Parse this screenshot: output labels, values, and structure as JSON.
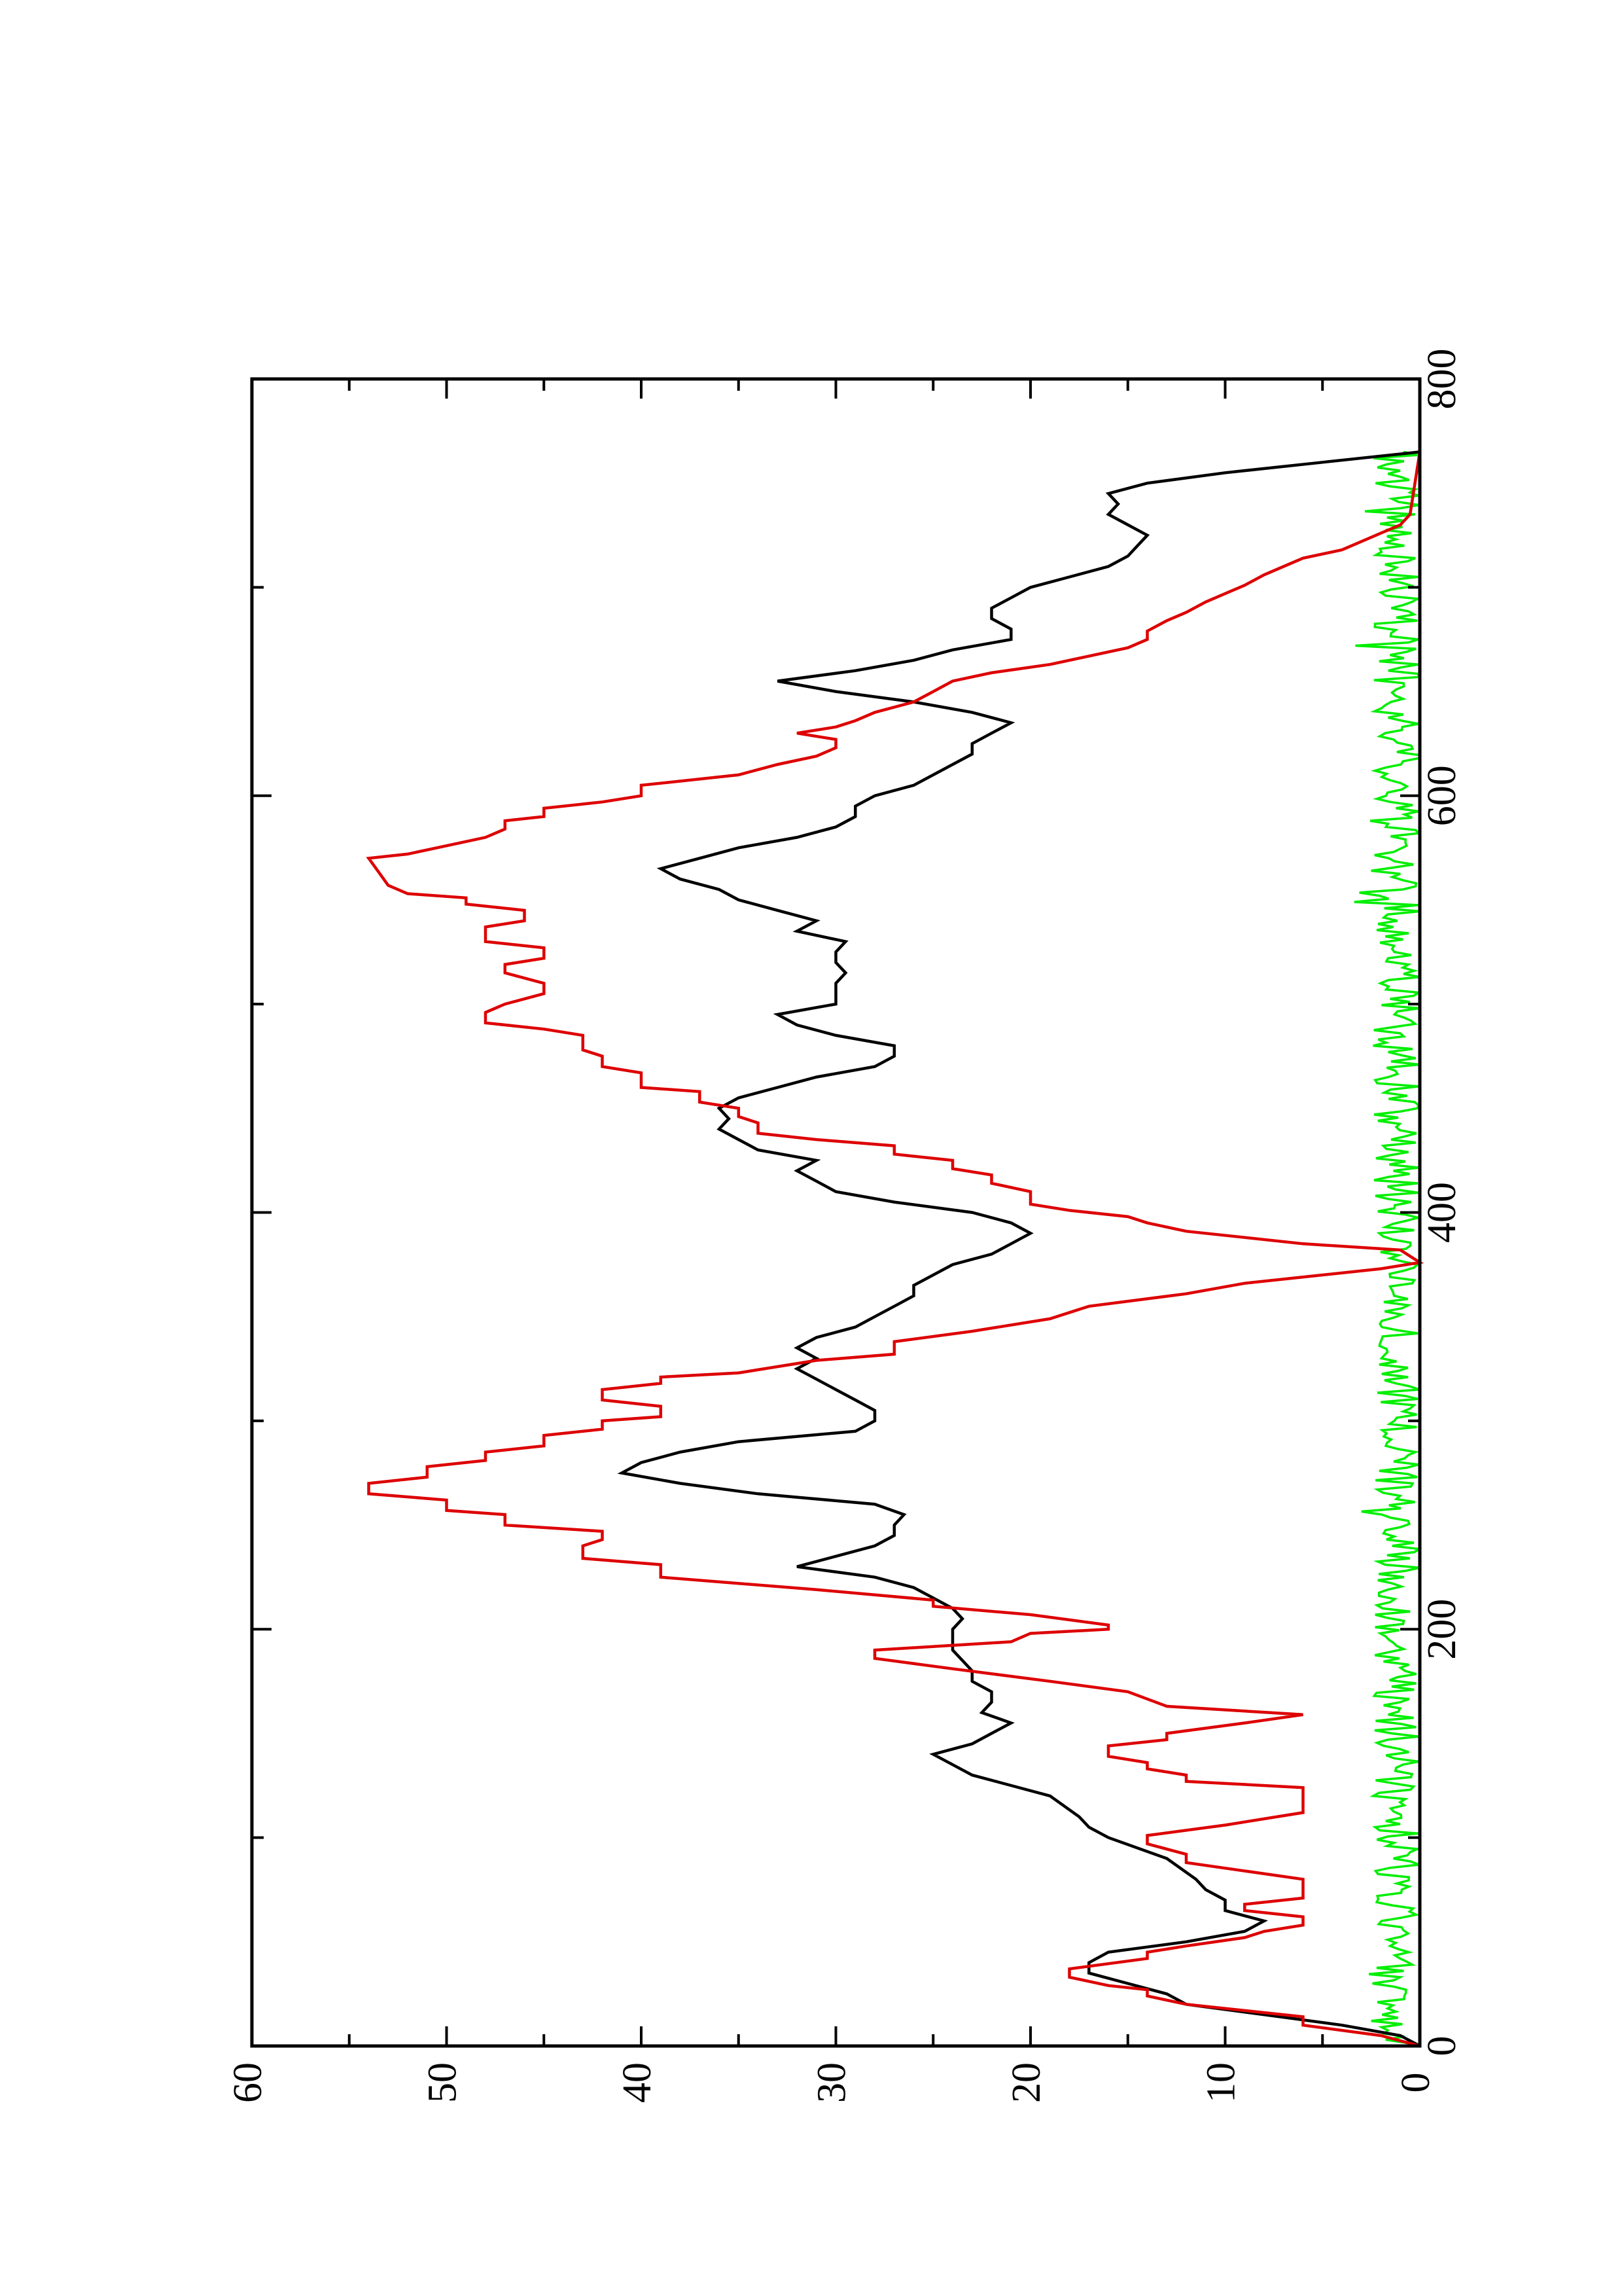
{
  "chart_data": {
    "type": "line",
    "orientation": "rotated-90-ccw",
    "xlim": [
      0,
      800
    ],
    "ylim": [
      0,
      60
    ],
    "x_ticks": [
      0,
      200,
      400,
      600,
      800
    ],
    "x_tick_labels": [
      "0",
      "200",
      "400",
      "600",
      "800"
    ],
    "y_ticks": [
      0,
      10,
      20,
      30,
      40,
      50,
      60
    ],
    "y_tick_labels": [
      "0",
      "10",
      "20",
      "30",
      "40",
      "50",
      "60"
    ],
    "grid": false,
    "legend": "none",
    "colors": {
      "black_series": "#000000",
      "red_series": "#dd0000",
      "green_series": "#00ee00"
    },
    "series": [
      {
        "color": "#000000",
        "points": [
          [
            0,
            0
          ],
          [
            5,
            1
          ],
          [
            10,
            4
          ],
          [
            15,
            8
          ],
          [
            20,
            12
          ],
          [
            25,
            13
          ],
          [
            30,
            15
          ],
          [
            35,
            17
          ],
          [
            40,
            17
          ],
          [
            45,
            16
          ],
          [
            50,
            12
          ],
          [
            55,
            9
          ],
          [
            60,
            8
          ],
          [
            65,
            10
          ],
          [
            70,
            10
          ],
          [
            75,
            11
          ],
          [
            80,
            11.5
          ],
          [
            90,
            13
          ],
          [
            100,
            16
          ],
          [
            105,
            17
          ],
          [
            110,
            17.5
          ],
          [
            120,
            19
          ],
          [
            125,
            21
          ],
          [
            130,
            23
          ],
          [
            135,
            24
          ],
          [
            140,
            25
          ],
          [
            145,
            23
          ],
          [
            150,
            22
          ],
          [
            155,
            21
          ],
          [
            160,
            22.5
          ],
          [
            165,
            22
          ],
          [
            170,
            22
          ],
          [
            175,
            23
          ],
          [
            180,
            23
          ],
          [
            190,
            24
          ],
          [
            200,
            24
          ],
          [
            205,
            23.5
          ],
          [
            210,
            24
          ],
          [
            215,
            25
          ],
          [
            220,
            26
          ],
          [
            225,
            28
          ],
          [
            230,
            32
          ],
          [
            235,
            30
          ],
          [
            240,
            28
          ],
          [
            245,
            27
          ],
          [
            250,
            27
          ],
          [
            255,
            26.5
          ],
          [
            260,
            28
          ],
          [
            265,
            34
          ],
          [
            270,
            38
          ],
          [
            275,
            41
          ],
          [
            280,
            40
          ],
          [
            285,
            38
          ],
          [
            290,
            35
          ],
          [
            295,
            29
          ],
          [
            300,
            28
          ],
          [
            305,
            28
          ],
          [
            310,
            29
          ],
          [
            315,
            30
          ],
          [
            320,
            31
          ],
          [
            325,
            32
          ],
          [
            330,
            31
          ],
          [
            335,
            32
          ],
          [
            340,
            31
          ],
          [
            345,
            29
          ],
          [
            350,
            28
          ],
          [
            355,
            27
          ],
          [
            360,
            26
          ],
          [
            365,
            26
          ],
          [
            370,
            25
          ],
          [
            375,
            24
          ],
          [
            380,
            22
          ],
          [
            385,
            21
          ],
          [
            390,
            20
          ],
          [
            395,
            21
          ],
          [
            400,
            23
          ],
          [
            405,
            27
          ],
          [
            410,
            30
          ],
          [
            415,
            31
          ],
          [
            420,
            32
          ],
          [
            425,
            31
          ],
          [
            430,
            34
          ],
          [
            435,
            35
          ],
          [
            440,
            36
          ],
          [
            445,
            35.5
          ],
          [
            450,
            36
          ],
          [
            455,
            35
          ],
          [
            460,
            33
          ],
          [
            465,
            31
          ],
          [
            470,
            28
          ],
          [
            475,
            27
          ],
          [
            480,
            27
          ],
          [
            485,
            30
          ],
          [
            490,
            32
          ],
          [
            495,
            33
          ],
          [
            500,
            30
          ],
          [
            505,
            30
          ],
          [
            510,
            30
          ],
          [
            515,
            29.5
          ],
          [
            520,
            30
          ],
          [
            525,
            30
          ],
          [
            530,
            29.5
          ],
          [
            535,
            32
          ],
          [
            540,
            31
          ],
          [
            545,
            33
          ],
          [
            550,
            35
          ],
          [
            555,
            36
          ],
          [
            560,
            38
          ],
          [
            565,
            39
          ],
          [
            570,
            37
          ],
          [
            575,
            35
          ],
          [
            580,
            32
          ],
          [
            585,
            30
          ],
          [
            590,
            29
          ],
          [
            595,
            29
          ],
          [
            600,
            28
          ],
          [
            605,
            26
          ],
          [
            610,
            25
          ],
          [
            615,
            24
          ],
          [
            620,
            23
          ],
          [
            625,
            23
          ],
          [
            630,
            22
          ],
          [
            635,
            21
          ],
          [
            640,
            23
          ],
          [
            645,
            26
          ],
          [
            650,
            30
          ],
          [
            655,
            33
          ],
          [
            660,
            29
          ],
          [
            665,
            26
          ],
          [
            670,
            24
          ],
          [
            675,
            21
          ],
          [
            680,
            21
          ],
          [
            685,
            22
          ],
          [
            690,
            22
          ],
          [
            695,
            21
          ],
          [
            700,
            20
          ],
          [
            705,
            18
          ],
          [
            710,
            16
          ],
          [
            715,
            15
          ],
          [
            720,
            14.5
          ],
          [
            725,
            14
          ],
          [
            730,
            15
          ],
          [
            735,
            16
          ],
          [
            740,
            15.5
          ],
          [
            745,
            16
          ],
          [
            750,
            14
          ],
          [
            755,
            10
          ],
          [
            760,
            5
          ],
          [
            765,
            0
          ]
        ]
      },
      {
        "color": "#dd0000",
        "points": [
          [
            0,
            0
          ],
          [
            5,
            2
          ],
          [
            10,
            6
          ],
          [
            14,
            6
          ],
          [
            17,
            9
          ],
          [
            20,
            12
          ],
          [
            24,
            14
          ],
          [
            27,
            14
          ],
          [
            29,
            16
          ],
          [
            33,
            18
          ],
          [
            37,
            18
          ],
          [
            42,
            14
          ],
          [
            45,
            14
          ],
          [
            48,
            12
          ],
          [
            52,
            9
          ],
          [
            55,
            8
          ],
          [
            58,
            6
          ],
          [
            62,
            6
          ],
          [
            65,
            9
          ],
          [
            68,
            9
          ],
          [
            71,
            6
          ],
          [
            80,
            6
          ],
          [
            88,
            12
          ],
          [
            92,
            12
          ],
          [
            97,
            14
          ],
          [
            101,
            14
          ],
          [
            106,
            10
          ],
          [
            112,
            6
          ],
          [
            124,
            6
          ],
          [
            127,
            12
          ],
          [
            130,
            12
          ],
          [
            133,
            14
          ],
          [
            136,
            14
          ],
          [
            139,
            16
          ],
          [
            144,
            16
          ],
          [
            147,
            13
          ],
          [
            150,
            13
          ],
          [
            155,
            9
          ],
          [
            159,
            6
          ],
          [
            163,
            13
          ],
          [
            170,
            15
          ],
          [
            175,
            19
          ],
          [
            181,
            24
          ],
          [
            186,
            28
          ],
          [
            190,
            28
          ],
          [
            194,
            21
          ],
          [
            198,
            20
          ],
          [
            200,
            16
          ],
          [
            202,
            16
          ],
          [
            207,
            20
          ],
          [
            211,
            25
          ],
          [
            214,
            25
          ],
          [
            219,
            31
          ],
          [
            225,
            39
          ],
          [
            231,
            39
          ],
          [
            234,
            43
          ],
          [
            240,
            43
          ],
          [
            243,
            42
          ],
          [
            247,
            42
          ],
          [
            250,
            47
          ],
          [
            255,
            47
          ],
          [
            257,
            50
          ],
          [
            262,
            50
          ],
          [
            265,
            54
          ],
          [
            270,
            54
          ],
          [
            273,
            51
          ],
          [
            278,
            51
          ],
          [
            281,
            48
          ],
          [
            285,
            48
          ],
          [
            288,
            45
          ],
          [
            293,
            45
          ],
          [
            296,
            42
          ],
          [
            300,
            42
          ],
          [
            302,
            39
          ],
          [
            307,
            39
          ],
          [
            310,
            42
          ],
          [
            315,
            42
          ],
          [
            318,
            39
          ],
          [
            321,
            39
          ],
          [
            323,
            35
          ],
          [
            329,
            31
          ],
          [
            332,
            27
          ],
          [
            338,
            27
          ],
          [
            343,
            23
          ],
          [
            349,
            19
          ],
          [
            355,
            17
          ],
          [
            361,
            12
          ],
          [
            366,
            9
          ],
          [
            370,
            5
          ],
          [
            373,
            2
          ],
          [
            376,
            0
          ],
          [
            382,
            1
          ],
          [
            385,
            6
          ],
          [
            388,
            9
          ],
          [
            391,
            12
          ],
          [
            395,
            14
          ],
          [
            398,
            15
          ],
          [
            401,
            18
          ],
          [
            404,
            20
          ],
          [
            410,
            20
          ],
          [
            414,
            22
          ],
          [
            418,
            22
          ],
          [
            421,
            24
          ],
          [
            425,
            24
          ],
          [
            428,
            27
          ],
          [
            432,
            27
          ],
          [
            435,
            31
          ],
          [
            438,
            34
          ],
          [
            443,
            34
          ],
          [
            446,
            35
          ],
          [
            450,
            35
          ],
          [
            453,
            37
          ],
          [
            458,
            37
          ],
          [
            460,
            40
          ],
          [
            467,
            40
          ],
          [
            470,
            42
          ],
          [
            475,
            42
          ],
          [
            478,
            43
          ],
          [
            485,
            43
          ],
          [
            488,
            45
          ],
          [
            491,
            48
          ],
          [
            496,
            48
          ],
          [
            500,
            47
          ],
          [
            505,
            45
          ],
          [
            510,
            45
          ],
          [
            515,
            47
          ],
          [
            519,
            47
          ],
          [
            522,
            45
          ],
          [
            527,
            45
          ],
          [
            530,
            48
          ],
          [
            537,
            48
          ],
          [
            540,
            46
          ],
          [
            545,
            46
          ],
          [
            548,
            49
          ],
          [
            551,
            49
          ],
          [
            553,
            52
          ],
          [
            557,
            53
          ],
          [
            570,
            54
          ],
          [
            572,
            52
          ],
          [
            576,
            50
          ],
          [
            580,
            48
          ],
          [
            584,
            47
          ],
          [
            588,
            47
          ],
          [
            590,
            45
          ],
          [
            594,
            45
          ],
          [
            597,
            42
          ],
          [
            600,
            40
          ],
          [
            605,
            40
          ],
          [
            610,
            35
          ],
          [
            615,
            33
          ],
          [
            619,
            31
          ],
          [
            623,
            30
          ],
          [
            627,
            30
          ],
          [
            630,
            32
          ],
          [
            633,
            30
          ],
          [
            636,
            29
          ],
          [
            640,
            28
          ],
          [
            645,
            26
          ],
          [
            650,
            25
          ],
          [
            655,
            24
          ],
          [
            659,
            22
          ],
          [
            663,
            19
          ],
          [
            667,
            17
          ],
          [
            671,
            15
          ],
          [
            675,
            14
          ],
          [
            679,
            14
          ],
          [
            684,
            13
          ],
          [
            688,
            12
          ],
          [
            693,
            11
          ],
          [
            697,
            10
          ],
          [
            701,
            9
          ],
          [
            706,
            8
          ],
          [
            710,
            7
          ],
          [
            714,
            6
          ],
          [
            718,
            4
          ],
          [
            722,
            3
          ],
          [
            726,
            2
          ],
          [
            730,
            1
          ],
          [
            735,
            0.5
          ],
          [
            765,
            0
          ]
        ]
      },
      {
        "color": "#00ee00",
        "points": []
      }
    ]
  }
}
